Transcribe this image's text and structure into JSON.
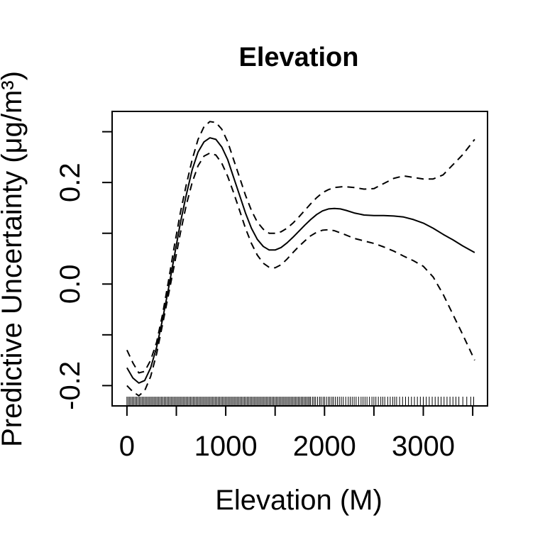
{
  "chart_data": {
    "type": "line",
    "title": "Elevation",
    "xlabel": "Elevation (M)",
    "ylabel": "Predictive Uncertainty (μg/m³)",
    "xlim": [
      -150,
      3650
    ],
    "ylim": [
      -0.24,
      0.34
    ],
    "x_ticks": [
      0,
      500,
      1000,
      1500,
      2000,
      2500,
      3000,
      3500
    ],
    "x_tick_labels": [
      "0",
      "",
      "1000",
      "",
      "2000",
      "",
      "3000",
      ""
    ],
    "y_ticks": [
      -0.2,
      -0.1,
      0.0,
      0.1,
      0.2,
      0.3
    ],
    "y_tick_labels": [
      "-0.2",
      "",
      "0.0",
      "",
      "0.2",
      ""
    ],
    "grid": false,
    "series": [
      {
        "line_style": "solid",
        "x": [
          0,
          60,
          120,
          180,
          240,
          300,
          360,
          420,
          480,
          540,
          600,
          660,
          720,
          780,
          840,
          900,
          960,
          1020,
          1080,
          1140,
          1200,
          1260,
          1320,
          1380,
          1440,
          1500,
          1560,
          1620,
          1680,
          1740,
          1800,
          1860,
          1920,
          1980,
          2040,
          2100,
          2160,
          2220,
          2300,
          2400,
          2500,
          2600,
          2700,
          2800,
          2900,
          3000,
          3100,
          3200,
          3300,
          3400,
          3520
        ],
        "y": [
          -0.165,
          -0.185,
          -0.195,
          -0.19,
          -0.165,
          -0.125,
          -0.07,
          -0.01,
          0.055,
          0.12,
          0.175,
          0.225,
          0.26,
          0.28,
          0.288,
          0.285,
          0.27,
          0.245,
          0.21,
          0.175,
          0.14,
          0.11,
          0.088,
          0.074,
          0.067,
          0.067,
          0.072,
          0.081,
          0.092,
          0.104,
          0.116,
          0.127,
          0.137,
          0.144,
          0.148,
          0.149,
          0.148,
          0.145,
          0.14,
          0.136,
          0.135,
          0.135,
          0.134,
          0.132,
          0.127,
          0.12,
          0.11,
          0.098,
          0.087,
          0.075,
          0.062
        ]
      },
      {
        "line_style": "dashed",
        "x": [
          0,
          60,
          120,
          180,
          240,
          300,
          360,
          420,
          480,
          540,
          600,
          660,
          720,
          780,
          840,
          900,
          960,
          1020,
          1080,
          1140,
          1200,
          1260,
          1320,
          1380,
          1440,
          1500,
          1560,
          1620,
          1680,
          1740,
          1800,
          1860,
          1920,
          1980,
          2040,
          2100,
          2200,
          2300,
          2400,
          2500,
          2600,
          2700,
          2800,
          2900,
          3000,
          3100,
          3200,
          3300,
          3400,
          3520
        ],
        "y": [
          -0.13,
          -0.155,
          -0.175,
          -0.172,
          -0.15,
          -0.115,
          -0.06,
          0.005,
          0.075,
          0.14,
          0.195,
          0.245,
          0.285,
          0.31,
          0.32,
          0.318,
          0.305,
          0.28,
          0.245,
          0.21,
          0.175,
          0.145,
          0.122,
          0.108,
          0.1,
          0.1,
          0.103,
          0.11,
          0.12,
          0.132,
          0.145,
          0.158,
          0.17,
          0.18,
          0.186,
          0.19,
          0.192,
          0.19,
          0.187,
          0.188,
          0.198,
          0.208,
          0.213,
          0.21,
          0.207,
          0.207,
          0.215,
          0.235,
          0.255,
          0.285
        ]
      },
      {
        "line_style": "dashed",
        "x": [
          0,
          60,
          120,
          180,
          240,
          300,
          360,
          420,
          480,
          540,
          600,
          660,
          720,
          780,
          840,
          900,
          960,
          1020,
          1080,
          1140,
          1200,
          1260,
          1320,
          1380,
          1440,
          1500,
          1560,
          1620,
          1680,
          1740,
          1800,
          1860,
          1920,
          1980,
          2040,
          2100,
          2200,
          2300,
          2400,
          2500,
          2600,
          2700,
          2800,
          2900,
          3000,
          3100,
          3200,
          3300,
          3400,
          3520
        ],
        "y": [
          -0.2,
          -0.212,
          -0.22,
          -0.21,
          -0.182,
          -0.138,
          -0.08,
          -0.022,
          0.038,
          0.1,
          0.155,
          0.2,
          0.233,
          0.252,
          0.258,
          0.254,
          0.238,
          0.212,
          0.18,
          0.145,
          0.11,
          0.08,
          0.057,
          0.041,
          0.033,
          0.032,
          0.038,
          0.049,
          0.062,
          0.074,
          0.085,
          0.095,
          0.102,
          0.106,
          0.107,
          0.105,
          0.098,
          0.09,
          0.085,
          0.08,
          0.073,
          0.065,
          0.055,
          0.046,
          0.035,
          0.014,
          -0.02,
          -0.06,
          -0.1,
          -0.15
        ]
      }
    ],
    "rug": {
      "dense_from": 0,
      "dense_to": 1850,
      "dense_step": 14,
      "sparse_x": [
        1860,
        1880,
        1895,
        1910,
        1930,
        1950,
        1965,
        1985,
        2000,
        2020,
        2040,
        2055,
        2075,
        2090,
        2110,
        2130,
        2150,
        2170,
        2190,
        2215,
        2240,
        2260,
        2280,
        2300,
        2320,
        2345,
        2370,
        2390,
        2410,
        2430,
        2455,
        2480,
        2500,
        2520,
        2545,
        2570,
        2590,
        2610,
        2640,
        2665,
        2690,
        2710,
        2730,
        2760,
        2790,
        2820,
        2850,
        2880,
        2910,
        2940,
        2970,
        3000,
        3030,
        3060,
        3090,
        3120,
        3150,
        3180,
        3210,
        3240,
        3270,
        3300,
        3330,
        3360,
        3400,
        3440,
        3480,
        3510
      ]
    }
  }
}
